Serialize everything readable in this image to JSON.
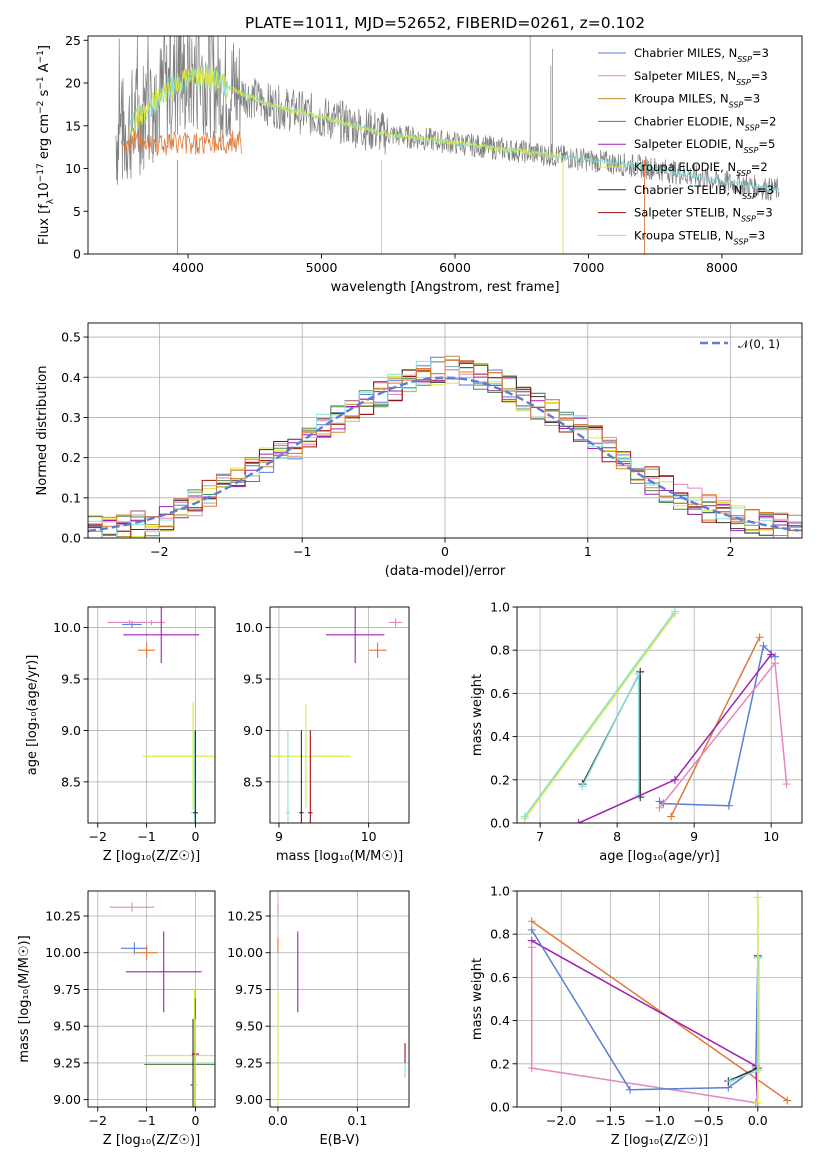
{
  "chart_data": [
    {
      "type": "line",
      "title": "PLATE=1011, MJD=52652, FIBERID=0261, z=0.102",
      "xlabel": "wavelength [Angstrom, rest frame]",
      "ylabel_parts": [
        "Flux [f",
        "λ",
        "10",
        "−17",
        " erg cm",
        "−2",
        " s",
        "−1",
        " A",
        "−1",
        "]"
      ],
      "xlim": [
        3250,
        8600
      ],
      "ylim": [
        0,
        25.5
      ],
      "xticks": [
        4000,
        5000,
        6000,
        7000,
        8000
      ],
      "yticks": [
        0,
        5,
        10,
        15,
        20,
        25
      ],
      "grid": false,
      "legend_position": "top-right",
      "legend": [
        {
          "base": "Chabrier MILES, N",
          "sub": "SSP",
          "tail": "=3",
          "color": "#5a7fd6"
        },
        {
          "base": "Salpeter MILES, N",
          "sub": "SSP",
          "tail": "=3",
          "color": "#e587bf"
        },
        {
          "base": "Kroupa MILES, N",
          "sub": "SSP",
          "tail": "=3",
          "color": "#c48e2a"
        },
        {
          "base": "Chabrier ELODIE, N",
          "sub": "SSP",
          "tail": "=2",
          "color": "#4f8a4f"
        },
        {
          "base": "Salpeter ELODIE, N",
          "sub": "SSP",
          "tail": "=5",
          "color": "#a020b0"
        },
        {
          "base": "Kroupa ELODIE, N",
          "sub": "SSP",
          "tail": "=2",
          "color": "#dde83a"
        },
        {
          "base": "Chabrier STELIB, N",
          "sub": "SSP",
          "tail": "=3",
          "color": "#333333"
        },
        {
          "base": "Salpeter STELIB, N",
          "sub": "SSP",
          "tail": "=3",
          "color": "#a01414"
        },
        {
          "base": "Kroupa STELIB, N",
          "sub": "SSP",
          "tail": "=3",
          "color": "#8ee0dc"
        }
      ],
      "data_color": "#808080",
      "data_envelope": {
        "x": [
          3500,
          3700,
          3900,
          4100,
          4300,
          4600,
          5000,
          5500,
          6000,
          6500,
          7000,
          7500,
          8000,
          8400
        ],
        "y": [
          14,
          17,
          20,
          21,
          19.5,
          17.5,
          16,
          14,
          13,
          12,
          11,
          10,
          8.5,
          7.5
        ]
      },
      "model_colors": [
        "#7fdcd8",
        "#dde83a",
        "#e07a3a"
      ]
    },
    {
      "type": "bar",
      "xlabel": "(data-model)/error",
      "ylabel": "Normed distribution",
      "xlim": [
        -2.5,
        2.5
      ],
      "ylim": [
        0,
        0.535
      ],
      "xticks": [
        -2,
        -1,
        0,
        1,
        2
      ],
      "yticks": [
        0.0,
        0.1,
        0.2,
        0.3,
        0.4,
        0.5
      ],
      "grid": true,
      "legend_position": "top-right",
      "legend": [
        {
          "label": "𝒩(0, 1)",
          "color": "#5a7fd6",
          "dashed": true
        }
      ],
      "bin_width": 0.1,
      "hist_envelope": {
        "x": [
          -2.5,
          -2,
          -1.5,
          -1,
          -0.5,
          -0.2,
          0,
          0.2,
          0.5,
          1,
          1.5,
          2,
          2.5
        ],
        "y": [
          0.02,
          0.04,
          0.14,
          0.24,
          0.35,
          0.4,
          0.42,
          0.41,
          0.36,
          0.26,
          0.13,
          0.05,
          0.02
        ]
      },
      "series_colors": [
        "#5a7fd6",
        "#e587bf",
        "#c48e2a",
        "#4f8a4f",
        "#a020b0",
        "#dde83a",
        "#333333",
        "#a01414",
        "#8ee0dc",
        "#e07a3a"
      ]
    },
    {
      "type": "scatter",
      "xlabel": "Z [log₁₀(Z/Z☉)]",
      "ylabel": "age  [log₁₀(age/yr)]",
      "xlim": [
        -2.2,
        0.4
      ],
      "ylim": [
        8.1,
        10.2
      ],
      "xticks": [
        -2,
        -1,
        0
      ],
      "yticks": [
        8.5,
        9.0,
        9.5,
        10.0
      ],
      "grid": true,
      "points": [
        {
          "x": -1.3,
          "y": 10.03,
          "xe": 0.4,
          "ye": 0.07,
          "color": "#5a7fd6"
        },
        {
          "x": -1.35,
          "y": 10.05,
          "xe": 0.9,
          "ye": 0.05,
          "color": "#e587bf"
        },
        {
          "x": -0.9,
          "y": 10.05,
          "xe": 0.55,
          "ye": 0.05,
          "color": "#e587bf"
        },
        {
          "x": -1.0,
          "y": 9.78,
          "xe": 0.35,
          "ye": 0.15,
          "color": "#e07a3a"
        },
        {
          "x": -0.7,
          "y": 9.93,
          "xe": 1.55,
          "ye": 0.55,
          "color": "#a020b0"
        },
        {
          "x": -0.05,
          "y": 8.75,
          "xe": 2.05,
          "ye": 1.05,
          "color": "#dde83a"
        },
        {
          "x": -0.02,
          "y": 8.2,
          "xe": 0.15,
          "ye": 1.6,
          "color": "#8ee0dc"
        },
        {
          "x": 0.0,
          "y": 8.2,
          "xe": 0.1,
          "ye": 1.6,
          "color": "#333333"
        }
      ]
    },
    {
      "type": "scatter",
      "xlabel": "mass [log₁₀(M/M☉)]",
      "xlim": [
        8.9,
        10.45
      ],
      "ylim": [
        8.1,
        10.2
      ],
      "xticks": [
        9,
        10
      ],
      "yticks": [
        8.5,
        9.0,
        9.5,
        10.0
      ],
      "grid": true,
      "points": [
        {
          "x": 10.3,
          "y": 10.05,
          "xe": 0.15,
          "ye": 0.08,
          "color": "#e587bf"
        },
        {
          "x": 10.1,
          "y": 9.78,
          "xe": 0.2,
          "ye": 0.15,
          "color": "#e07a3a"
        },
        {
          "x": 9.85,
          "y": 9.93,
          "xe": 0.65,
          "ye": 0.55,
          "color": "#a020b0"
        },
        {
          "x": 9.3,
          "y": 8.75,
          "xe": 1.0,
          "ye": 1.0,
          "color": "#dde83a"
        },
        {
          "x": 9.35,
          "y": 8.2,
          "xe": 0.05,
          "ye": 1.6,
          "color": "#a01414"
        },
        {
          "x": 9.1,
          "y": 8.2,
          "xe": 0.05,
          "ye": 1.6,
          "color": "#8ee0dc"
        },
        {
          "x": 9.25,
          "y": 8.2,
          "xe": 0.05,
          "ye": 1.6,
          "color": "#333333"
        }
      ]
    },
    {
      "type": "line",
      "xlabel": "age  [log₁₀(age/yr)]",
      "ylabel": "mass weight",
      "xlim": [
        6.7,
        10.4
      ],
      "ylim": [
        0,
        1.0
      ],
      "xticks": [
        7,
        8,
        9,
        10
      ],
      "yticks": [
        0.0,
        0.2,
        0.4,
        0.6,
        0.8,
        1.0
      ],
      "grid": true,
      "series": [
        {
          "color": "#dde83a",
          "x": [
            6.8,
            8.75
          ],
          "y": [
            0.02,
            0.97
          ]
        },
        {
          "color": "#8ee0dc",
          "x": [
            6.8,
            8.75
          ],
          "y": [
            0.03,
            0.98
          ]
        },
        {
          "color": "#333333",
          "x": [
            7.55,
            8.3,
            8.3
          ],
          "y": [
            0.18,
            0.7,
            0.12
          ]
        },
        {
          "color": "#8ee0dc",
          "x": [
            7.55,
            8.28,
            8.28
          ],
          "y": [
            0.17,
            0.69,
            0.13
          ]
        },
        {
          "color": "#5a7fd6",
          "x": [
            8.55,
            8.6,
            9.45,
            9.9,
            10.05
          ],
          "y": [
            0.1,
            0.09,
            0.08,
            0.82,
            0.77
          ]
        },
        {
          "color": "#e07a3a",
          "x": [
            8.7,
            9.85
          ],
          "y": [
            0.03,
            0.86
          ]
        },
        {
          "color": "#e587bf",
          "x": [
            8.55,
            10.05,
            10.2
          ],
          "y": [
            0.07,
            0.74,
            0.18
          ]
        },
        {
          "color": "#a020b0",
          "x": [
            7.5,
            8.75,
            10.0
          ],
          "y": [
            0.0,
            0.2,
            0.78
          ]
        }
      ]
    },
    {
      "type": "scatter",
      "xlabel": "Z [log₁₀(Z/Z☉)]",
      "ylabel": "mass [log₁₀(M/M☉)]",
      "xlim": [
        -2.2,
        0.4
      ],
      "ylim": [
        8.95,
        10.42
      ],
      "xticks": [
        -2,
        -1,
        0
      ],
      "yticks": [
        9.0,
        9.25,
        9.5,
        9.75,
        10.0,
        10.25
      ],
      "grid": true,
      "points": [
        {
          "x": -1.3,
          "y": 10.31,
          "xe": 0.9,
          "ye": 0.06,
          "color": "#e587bf"
        },
        {
          "x": -1.25,
          "y": 10.03,
          "xe": 0.55,
          "ye": 0.08,
          "color": "#5a7fd6"
        },
        {
          "x": -1.0,
          "y": 10.0,
          "xe": 0.45,
          "ye": 0.1,
          "color": "#e07a3a"
        },
        {
          "x": -0.65,
          "y": 9.87,
          "xe": 1.55,
          "ye": 0.55,
          "color": "#a020b0"
        },
        {
          "x": -0.02,
          "y": 9.3,
          "xe": 2.05,
          "ye": 0.9,
          "color": "#dde83a"
        },
        {
          "x": 0.0,
          "y": 9.31,
          "xe": 0.15,
          "ye": 0.15,
          "color": "#a01414"
        },
        {
          "x": 0.0,
          "y": 9.24,
          "xe": 2.1,
          "ye": 0.9,
          "color": "#4f8a4f"
        },
        {
          "x": -0.05,
          "y": 9.1,
          "xe": 0.1,
          "ye": 0.9,
          "color": "#333333"
        },
        {
          "x": 0.0,
          "y": 9.1,
          "xe": 0.1,
          "ye": 0.9,
          "color": "#8ee0dc"
        }
      ]
    },
    {
      "type": "scatter",
      "xlabel": "E(B-V)",
      "xlim": [
        -0.01,
        0.165
      ],
      "ylim": [
        8.95,
        10.42
      ],
      "xticks": [
        0.0,
        0.1
      ],
      "yticks": [
        9.0,
        9.25,
        9.5,
        9.75,
        10.0,
        10.25
      ],
      "grid": true,
      "points": [
        {
          "x": 0.0,
          "y": 10.3,
          "xe": 0.0,
          "ye": 0.08,
          "color": "#e587bf"
        },
        {
          "x": 0.0,
          "y": 10.05,
          "xe": 0.0,
          "ye": 0.1,
          "color": "#e07a3a"
        },
        {
          "x": 0.0,
          "y": 9.3,
          "xe": 0.0,
          "ye": 0.9,
          "color": "#dde83a"
        },
        {
          "x": 0.025,
          "y": 9.87,
          "xe": 0.0,
          "ye": 0.55,
          "color": "#a020b0"
        },
        {
          "x": 0.16,
          "y": 9.31,
          "xe": 0.0,
          "ye": 0.15,
          "color": "#a01414"
        },
        {
          "x": 0.16,
          "y": 9.2,
          "xe": 0.0,
          "ye": 0.1,
          "color": "#8ee0dc"
        }
      ]
    },
    {
      "type": "line",
      "xlabel": "Z [log₁₀(Z/Z☉)]",
      "ylabel": "mass weight",
      "xlim": [
        -2.45,
        0.45
      ],
      "ylim": [
        0,
        1.0
      ],
      "xticks": [
        -2.0,
        -1.5,
        -1.0,
        -0.5,
        0.0
      ],
      "yticks": [
        0.0,
        0.2,
        0.4,
        0.6,
        0.8,
        1.0
      ],
      "grid": true,
      "series": [
        {
          "color": "#e07a3a",
          "x": [
            -2.3,
            0.3
          ],
          "y": [
            0.86,
            0.03
          ]
        },
        {
          "color": "#a020b0",
          "x": [
            -2.3,
            -0.02,
            0.0
          ],
          "y": [
            0.77,
            0.19,
            0.0
          ]
        },
        {
          "color": "#e587bf",
          "x": [
            -2.3,
            -2.3,
            -0.02
          ],
          "y": [
            0.74,
            0.18,
            0.02
          ]
        },
        {
          "color": "#5a7fd6",
          "x": [
            -2.3,
            -1.3,
            -0.3,
            -0.02,
            0.0
          ],
          "y": [
            0.82,
            0.08,
            0.09,
            0.18,
            0.69
          ]
        },
        {
          "color": "#333333",
          "x": [
            -0.3,
            0.0,
            0.0
          ],
          "y": [
            0.12,
            0.18,
            0.7
          ]
        },
        {
          "color": "#8ee0dc",
          "x": [
            -0.28,
            0.01,
            0.01
          ],
          "y": [
            0.12,
            0.17,
            0.69
          ]
        },
        {
          "color": "#dde83a",
          "x": [
            0.0,
            0.0
          ],
          "y": [
            0.02,
            0.97
          ]
        }
      ]
    }
  ]
}
